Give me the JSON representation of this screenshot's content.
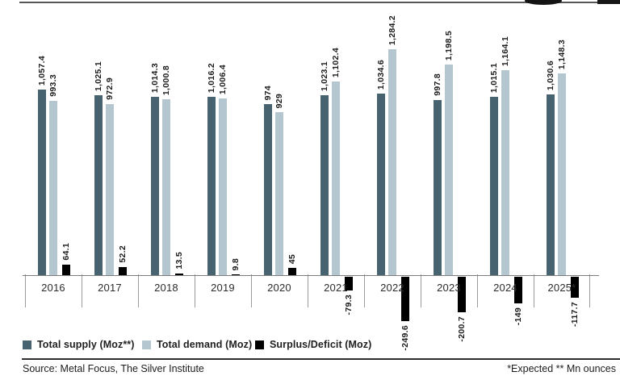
{
  "chart_data": {
    "type": "bar",
    "title": "",
    "categories": [
      "2016",
      "2017",
      "2018",
      "2019",
      "2020",
      "2021",
      "2022",
      "2023",
      "2024",
      "2025*"
    ],
    "series": [
      {
        "name": "Total supply (Moz**)",
        "color": "#47636f",
        "values": [
          1057.4,
          1025.1,
          1014.3,
          1016.2,
          974,
          1023.1,
          1034.6,
          997.8,
          1015.1,
          1030.6
        ],
        "labels": [
          "1,057.4",
          "1,025.1",
          "1,014.3",
          "1,016.2",
          "974",
          "1,023.1",
          "1,034.6",
          "997.8",
          "1,015.1",
          "1,030.6"
        ]
      },
      {
        "name": "Total demand (Moz)",
        "color": "#b4c7d1",
        "values": [
          993.3,
          972.9,
          1000.8,
          1006.4,
          929,
          1102.4,
          1284.2,
          1198.5,
          1164.1,
          1148.3
        ],
        "labels": [
          "993.3",
          "972.9",
          "1,000.8",
          "1,006.4",
          "929",
          "1,102.4",
          "1,284.2",
          "1,198.5",
          "1,164.1",
          "1,148.3"
        ]
      },
      {
        "name": "Surplus/Deficit (Moz)",
        "color": "#000000",
        "values": [
          64.1,
          52.2,
          13.5,
          9.8,
          45,
          -79.3,
          -249.6,
          -200.7,
          -149,
          -117.7
        ],
        "labels": [
          "64.1",
          "52.2",
          "13.5",
          "9.8",
          "45",
          "-79.3",
          "-249.6",
          "-200.7",
          "-149",
          "-117.7"
        ]
      }
    ],
    "ylim": [
      -260,
      1300
    ],
    "grid": false,
    "legend_position": "bottom",
    "value_labels_rotated": true
  },
  "footer": {
    "source": "Source: Metal Focus, The Silver Institute",
    "footnote": "*Expected ** Mn ounces"
  }
}
